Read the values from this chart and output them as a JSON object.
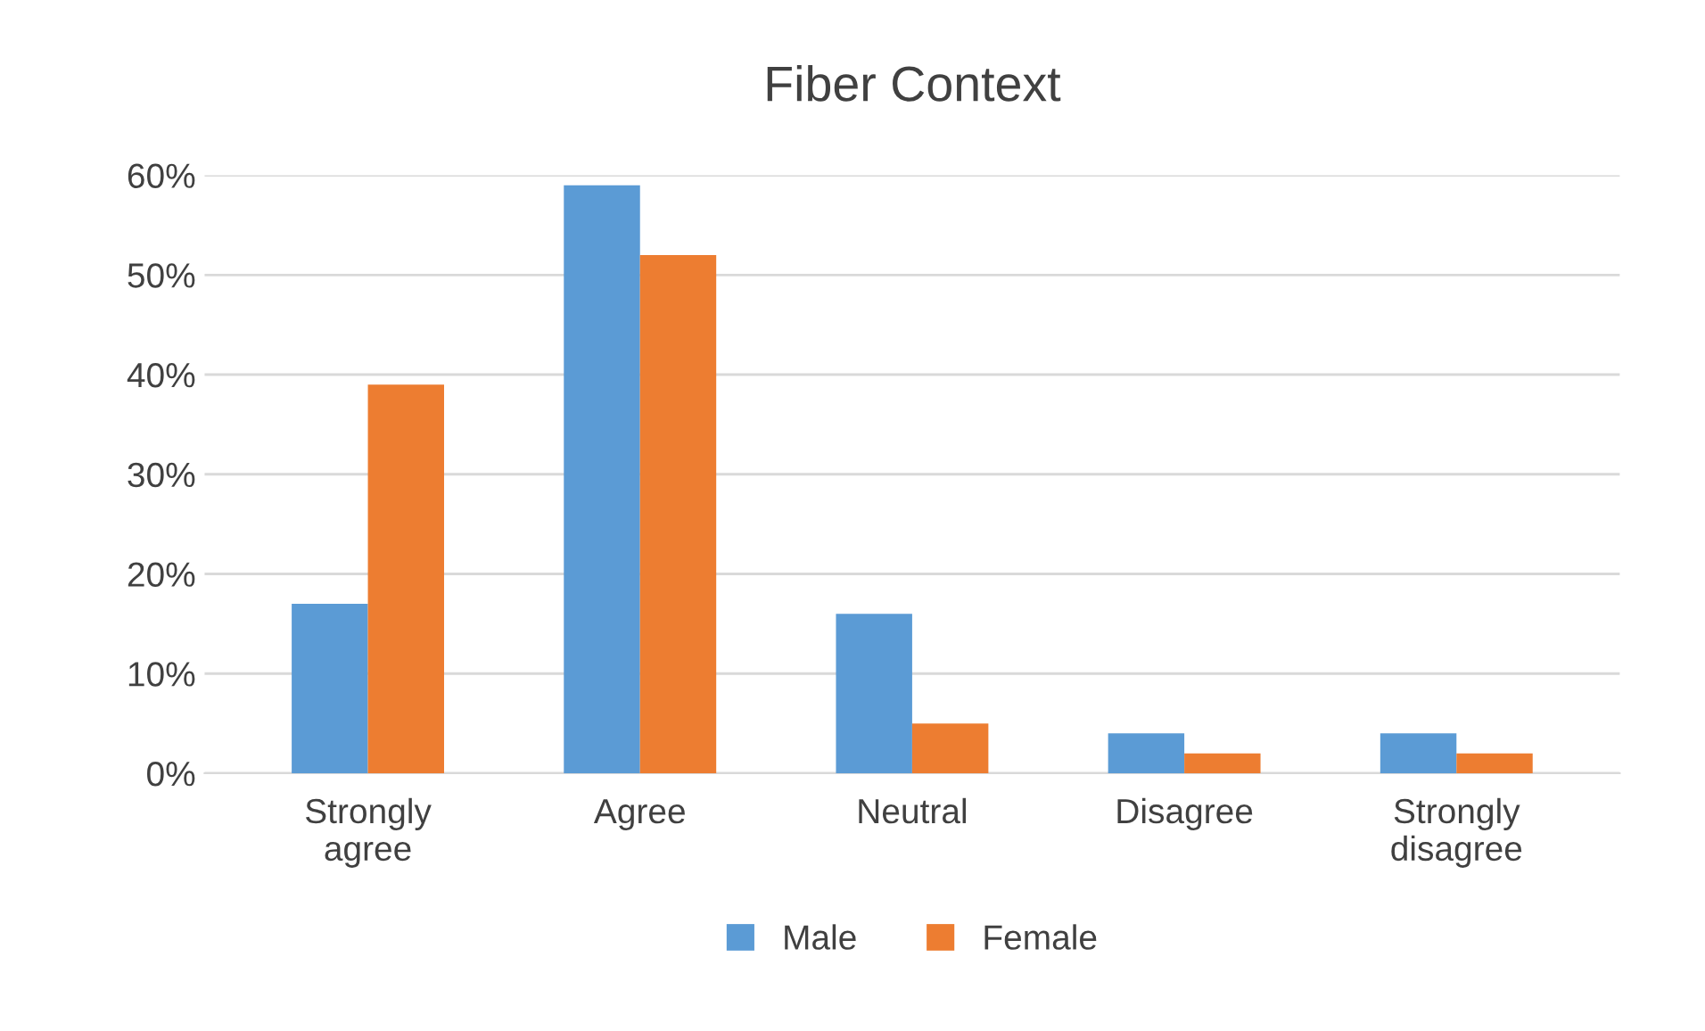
{
  "chart_data": {
    "type": "bar",
    "title": "Fiber Context",
    "categories": [
      "Strongly\nagree",
      "Agree",
      "Neutral",
      "Disagree",
      "Strongly\ndisagree"
    ],
    "series": [
      {
        "name": "Male",
        "color": "#5b9bd5",
        "values": [
          17,
          59,
          16,
          4,
          4
        ]
      },
      {
        "name": "Female",
        "color": "#ed7d31",
        "values": [
          39,
          52,
          5,
          2,
          2
        ]
      }
    ],
    "ylim": [
      0,
      60
    ],
    "yticks": [
      {
        "value": 0,
        "label": "0%"
      },
      {
        "value": 10,
        "label": "10%"
      },
      {
        "value": 20,
        "label": "20%"
      },
      {
        "value": 30,
        "label": "30%"
      },
      {
        "value": 40,
        "label": "40%"
      },
      {
        "value": 50,
        "label": "50%"
      },
      {
        "value": 60,
        "label": "60%"
      }
    ],
    "grid": "y",
    "legend": "bottom"
  }
}
